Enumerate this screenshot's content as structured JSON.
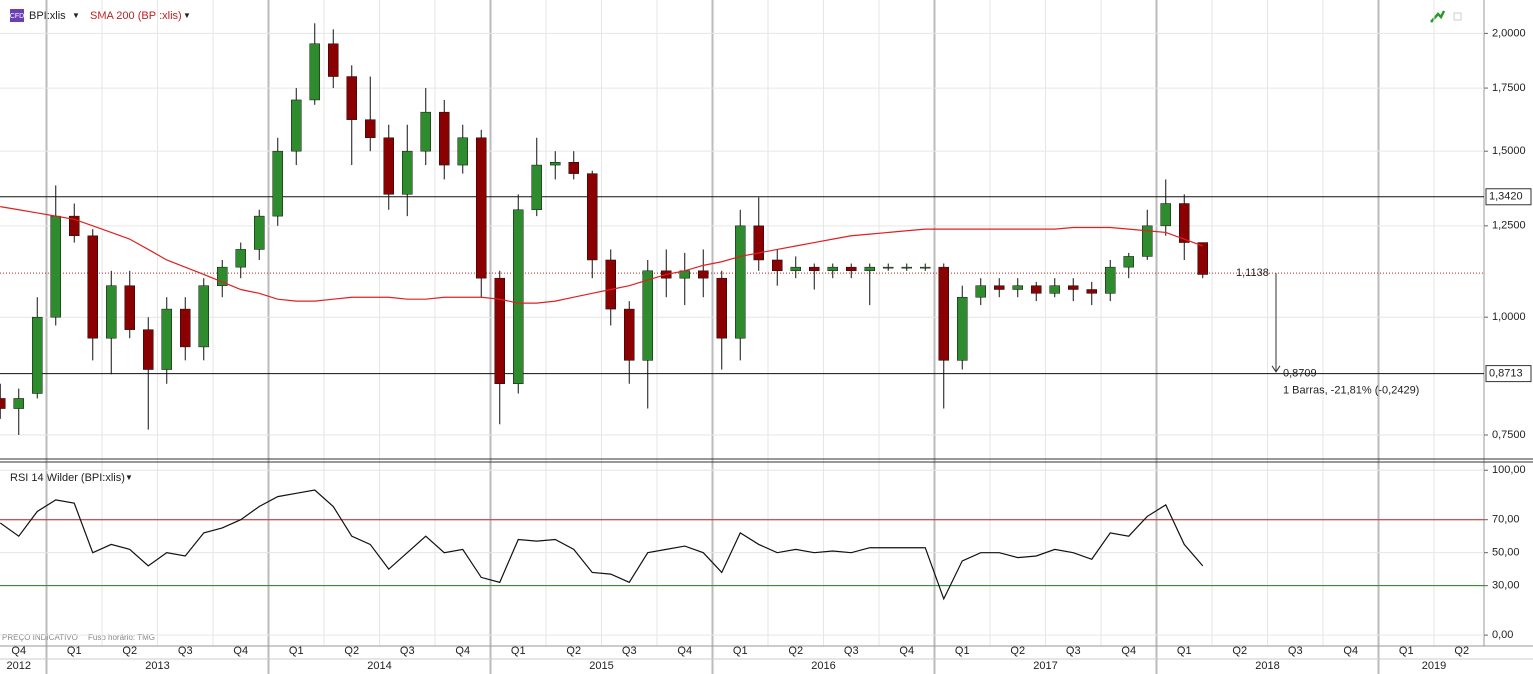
{
  "legend": {
    "symbol": "BPI:xlis",
    "sma": "SMA 200 (BPI:xlis)",
    "rsi": "RSI 14 Wilder (BPI:xlis)",
    "badge": "CFD"
  },
  "footer": {
    "note": "PREÇO INDICATIVO",
    "timezone": "Fuso horário: TMG"
  },
  "time_axis": {
    "quarters": [
      "Q4",
      "Q1",
      "Q2",
      "Q3",
      "Q4",
      "Q1",
      "Q2",
      "Q3",
      "Q4",
      "Q1",
      "Q2",
      "Q3",
      "Q4",
      "Q1",
      "Q2",
      "Q3",
      "Q4",
      "Q1",
      "Q2",
      "Q3",
      "Q4",
      "Q1",
      "Q2",
      "Q3",
      "Q4",
      "Q1",
      "Q2"
    ],
    "years": [
      "2012",
      "2013",
      "2014",
      "2015",
      "2016",
      "2017",
      "2018",
      "2019"
    ]
  },
  "chart_data": [
    {
      "type": "candlestick",
      "log_scale": true,
      "grid": true,
      "up_color": "#2e8b2e",
      "down_color": "#8b0000",
      "open": [
        0.82,
        0.8,
        0.83,
        1.0,
        1.28,
        1.22,
        0.95,
        1.08,
        0.97,
        0.88,
        1.02,
        0.93,
        1.08,
        1.13,
        1.18,
        1.28,
        1.5,
        1.7,
        1.95,
        1.8,
        1.62,
        1.55,
        1.35,
        1.5,
        1.65,
        1.45,
        1.55,
        1.1,
        0.85,
        1.3,
        1.45,
        1.46,
        1.42,
        1.15,
        1.02,
        0.9,
        1.12,
        1.1,
        1.12,
        1.1,
        0.95,
        1.25,
        1.15,
        1.12,
        1.13,
        1.12,
        1.13,
        1.12,
        1.13,
        1.13,
        1.13,
        1.13,
        0.9,
        1.05,
        1.08,
        1.07,
        1.08,
        1.06,
        1.08,
        1.07,
        1.06,
        1.13,
        1.16,
        1.25,
        1.32,
        1.2
      ],
      "high": [
        0.85,
        0.84,
        1.05,
        1.38,
        1.32,
        1.24,
        1.12,
        1.12,
        1.0,
        1.05,
        1.05,
        1.1,
        1.15,
        1.2,
        1.3,
        1.55,
        1.75,
        2.05,
        2.02,
        1.85,
        1.8,
        1.6,
        1.6,
        1.75,
        1.7,
        1.6,
        1.58,
        1.12,
        1.35,
        1.55,
        1.5,
        1.5,
        1.43,
        1.18,
        1.04,
        1.15,
        1.18,
        1.17,
        1.18,
        1.12,
        1.3,
        1.34,
        1.18,
        1.16,
        1.14,
        1.14,
        1.14,
        1.14,
        1.14,
        1.14,
        1.14,
        1.14,
        1.08,
        1.1,
        1.1,
        1.1,
        1.09,
        1.1,
        1.1,
        1.09,
        1.15,
        1.17,
        1.3,
        1.4,
        1.35,
        1.2
      ],
      "low": [
        0.78,
        0.75,
        0.82,
        0.98,
        1.2,
        0.9,
        0.87,
        0.95,
        0.76,
        0.85,
        0.9,
        0.9,
        1.05,
        1.1,
        1.15,
        1.25,
        1.45,
        1.68,
        1.75,
        1.45,
        1.5,
        1.3,
        1.28,
        1.45,
        1.4,
        1.42,
        1.05,
        0.77,
        0.83,
        1.28,
        1.4,
        1.4,
        1.1,
        0.98,
        0.85,
        0.8,
        1.05,
        1.03,
        1.05,
        0.88,
        0.9,
        1.12,
        1.08,
        1.1,
        1.07,
        1.1,
        1.1,
        1.03,
        1.12,
        1.12,
        1.12,
        0.8,
        0.88,
        1.03,
        1.05,
        1.05,
        1.04,
        1.05,
        1.04,
        1.03,
        1.04,
        1.1,
        1.15,
        1.22,
        1.15,
        1.1
      ],
      "close": [
        0.8,
        0.82,
        1.0,
        1.28,
        1.22,
        0.95,
        1.08,
        0.97,
        0.88,
        1.02,
        0.93,
        1.08,
        1.13,
        1.18,
        1.28,
        1.5,
        1.7,
        1.95,
        1.8,
        1.62,
        1.55,
        1.35,
        1.5,
        1.65,
        1.45,
        1.55,
        1.1,
        0.85,
        1.3,
        1.45,
        1.46,
        1.42,
        1.15,
        1.02,
        0.9,
        1.12,
        1.1,
        1.12,
        1.1,
        0.95,
        1.25,
        1.15,
        1.12,
        1.13,
        1.12,
        1.13,
        1.12,
        1.13,
        1.13,
        1.13,
        1.13,
        0.9,
        1.05,
        1.08,
        1.07,
        1.08,
        1.06,
        1.08,
        1.07,
        1.06,
        1.13,
        1.16,
        1.25,
        1.32,
        1.2,
        1.11
      ],
      "series": [
        {
          "name": "SMA 200 (BPI:xlis)",
          "color": "#e02020",
          "values": [
            1.31,
            1.3,
            1.29,
            1.28,
            1.27,
            1.25,
            1.23,
            1.21,
            1.18,
            1.15,
            1.13,
            1.11,
            1.09,
            1.07,
            1.06,
            1.045,
            1.04,
            1.04,
            1.045,
            1.05,
            1.05,
            1.05,
            1.045,
            1.045,
            1.05,
            1.05,
            1.05,
            1.045,
            1.035,
            1.035,
            1.04,
            1.05,
            1.06,
            1.07,
            1.08,
            1.095,
            1.11,
            1.12,
            1.135,
            1.145,
            1.16,
            1.17,
            1.18,
            1.19,
            1.2,
            1.21,
            1.22,
            1.225,
            1.23,
            1.235,
            1.24,
            1.24,
            1.24,
            1.24,
            1.24,
            1.24,
            1.24,
            1.24,
            1.245,
            1.245,
            1.245,
            1.24,
            1.235,
            1.23,
            1.21,
            1.19
          ]
        }
      ],
      "ylim": [
        0.709,
        2.17
      ],
      "yticks": [
        {
          "value": 0.75,
          "label": "0,7500"
        },
        {
          "value": 1.0,
          "label": "1,0000"
        },
        {
          "value": 1.25,
          "label": "1,2500"
        },
        {
          "value": 1.5,
          "label": "1,5000"
        },
        {
          "value": 1.75,
          "label": "1,7500"
        },
        {
          "value": 2.0,
          "label": "2,0000"
        }
      ],
      "levels": [
        {
          "value": 1.342,
          "label": "1,3420"
        },
        {
          "value": 0.8713,
          "label": "0,8713"
        }
      ],
      "last_price": {
        "value": 1.1138,
        "label": "1,1138"
      },
      "measure_target": {
        "value": 0.8709,
        "label": "0,8709"
      },
      "measure_text": "1 Barras, -21,81% (-0,2429)"
    },
    {
      "type": "line",
      "grid": true,
      "series": [
        {
          "name": "RSI 14 Wilder (BPI:xlis)",
          "color": "#111111",
          "values": [
            68,
            60,
            75,
            82,
            80,
            50,
            55,
            52,
            42,
            50,
            48,
            62,
            65,
            70,
            78,
            84,
            86,
            88,
            78,
            60,
            55,
            40,
            50,
            60,
            50,
            52,
            35,
            32,
            58,
            57,
            58,
            52,
            38,
            37,
            32,
            50,
            52,
            54,
            50,
            38,
            62,
            55,
            50,
            52,
            50,
            51,
            50,
            53,
            53,
            53,
            53,
            22,
            45,
            50,
            50,
            47,
            48,
            52,
            50,
            46,
            62,
            60,
            72,
            79,
            55,
            42
          ]
        }
      ],
      "ylim": [
        -6,
        105
      ],
      "yticks": [
        {
          "value": 0,
          "label": "0,00"
        },
        {
          "value": 30,
          "label": "30,00"
        },
        {
          "value": 50,
          "label": "50,00"
        },
        {
          "value": 70,
          "label": "70,00"
        },
        {
          "value": 100,
          "label": "100,00"
        }
      ],
      "levels": [
        {
          "value": 70,
          "color": "#c02020"
        },
        {
          "value": 30,
          "color": "#208020"
        }
      ]
    }
  ]
}
